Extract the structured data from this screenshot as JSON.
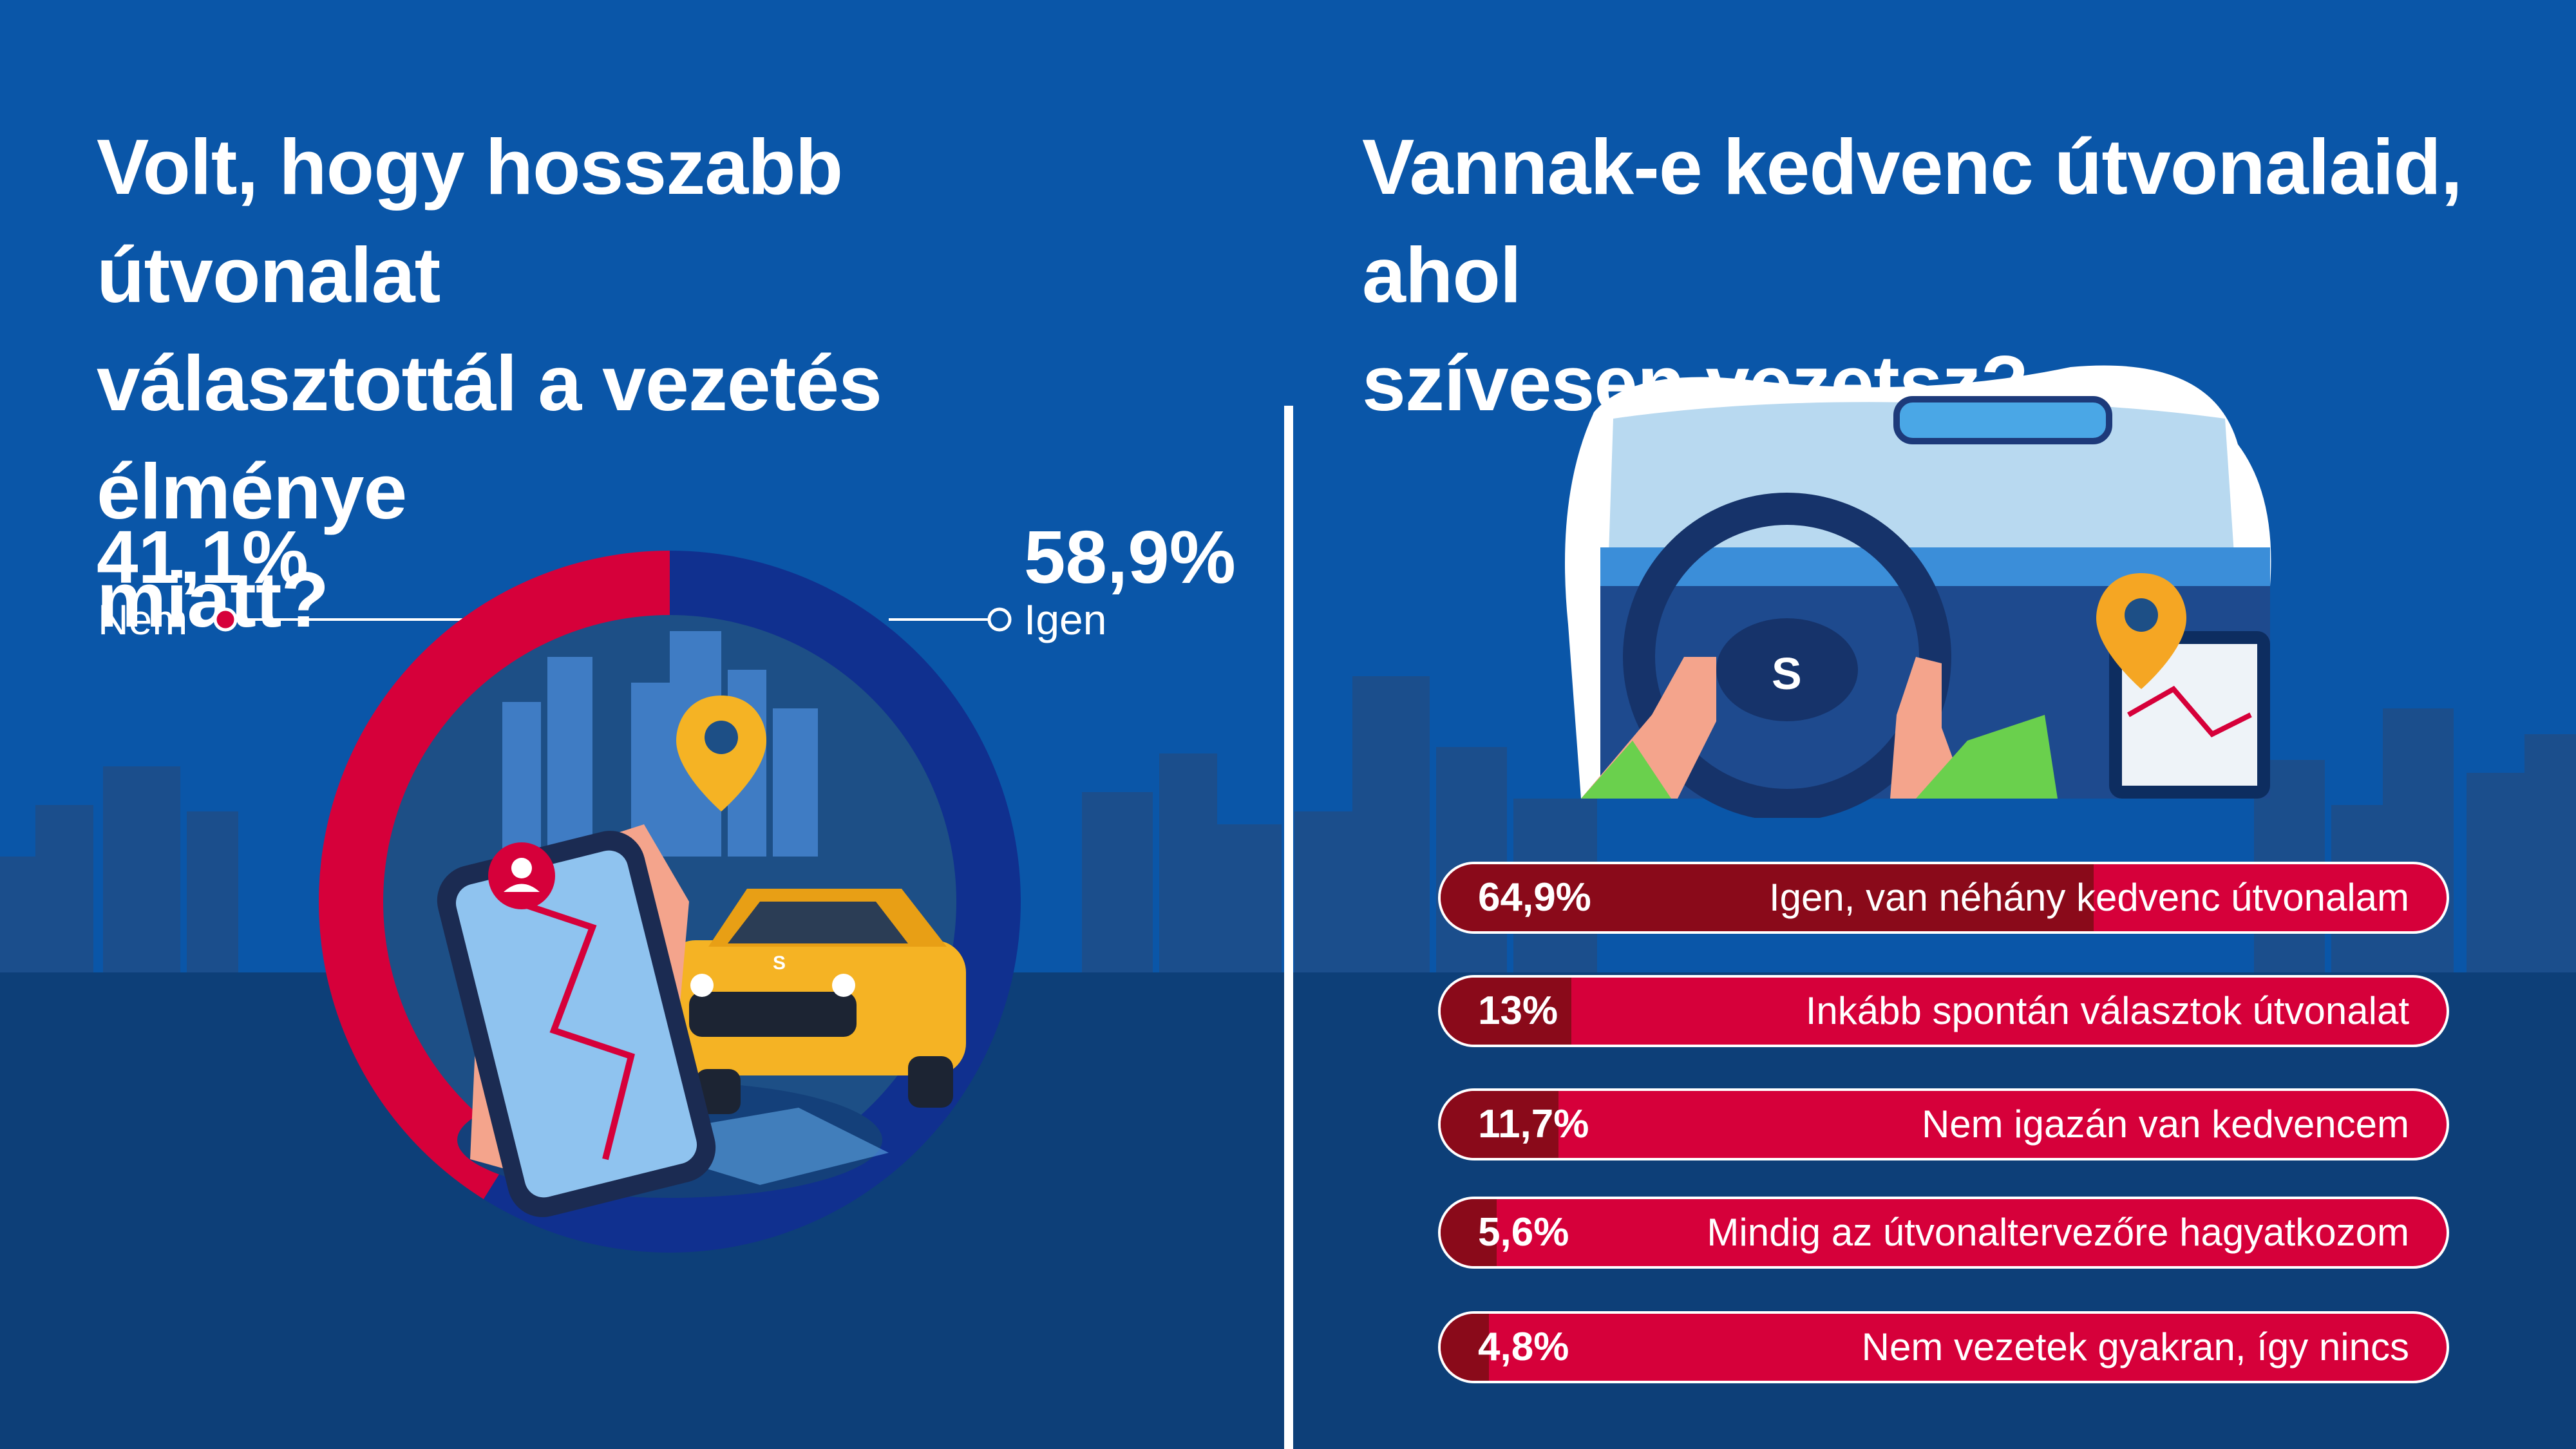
{
  "left": {
    "title_lines": [
      "Volt, hogy hosszabb útvonalat",
      "választottál a vezetés élménye",
      "miatt?"
    ]
  },
  "right": {
    "title_lines": [
      "Vannak-e kedvenc útvonalaid, ahol",
      "szívesen vezetsz?"
    ]
  },
  "colors": {
    "background": "#0a56a8",
    "red": "#d6003a",
    "dark_red": "#8a0a1a",
    "navy": "#10308f",
    "white": "#ffffff",
    "yellow_car": "#f5b324"
  },
  "icons": [
    "map-pin-icon",
    "suzuki-logo",
    "phone-map-icon",
    "location-pin-icon",
    "steering-wheel-icon"
  ],
  "chart_data": [
    {
      "type": "pie",
      "title": "Volt, hogy hosszabb útvonalat választottál a vezetés élménye miatt?",
      "slices": [
        {
          "label": "Nem",
          "value": 41.1,
          "display": "41,1%",
          "color": "#d6003a"
        },
        {
          "label": "Igen",
          "value": 58.9,
          "display": "58,9%",
          "color": "#10308f"
        }
      ]
    },
    {
      "type": "bar",
      "orientation": "horizontal",
      "title": "Vannak-e kedvenc útvonalaid, ahol szívesen vezetsz?",
      "xlim": [
        0,
        100
      ],
      "bars": [
        {
          "label": "Igen, van néhány kedvenc útvonalam",
          "value": 64.9,
          "display": "64,9%"
        },
        {
          "label": "Inkább spontán választok útvonalat",
          "value": 13,
          "display": "13%"
        },
        {
          "label": "Nem igazán van kedvencem",
          "value": 11.7,
          "display": "11,7%"
        },
        {
          "label": "Mindig az útvonaltervezőre hagyatkozom",
          "value": 5.6,
          "display": "5,6%"
        },
        {
          "label": "Nem vezetek gyakran, így nincs",
          "value": 4.8,
          "display": "4,8%"
        }
      ]
    }
  ]
}
